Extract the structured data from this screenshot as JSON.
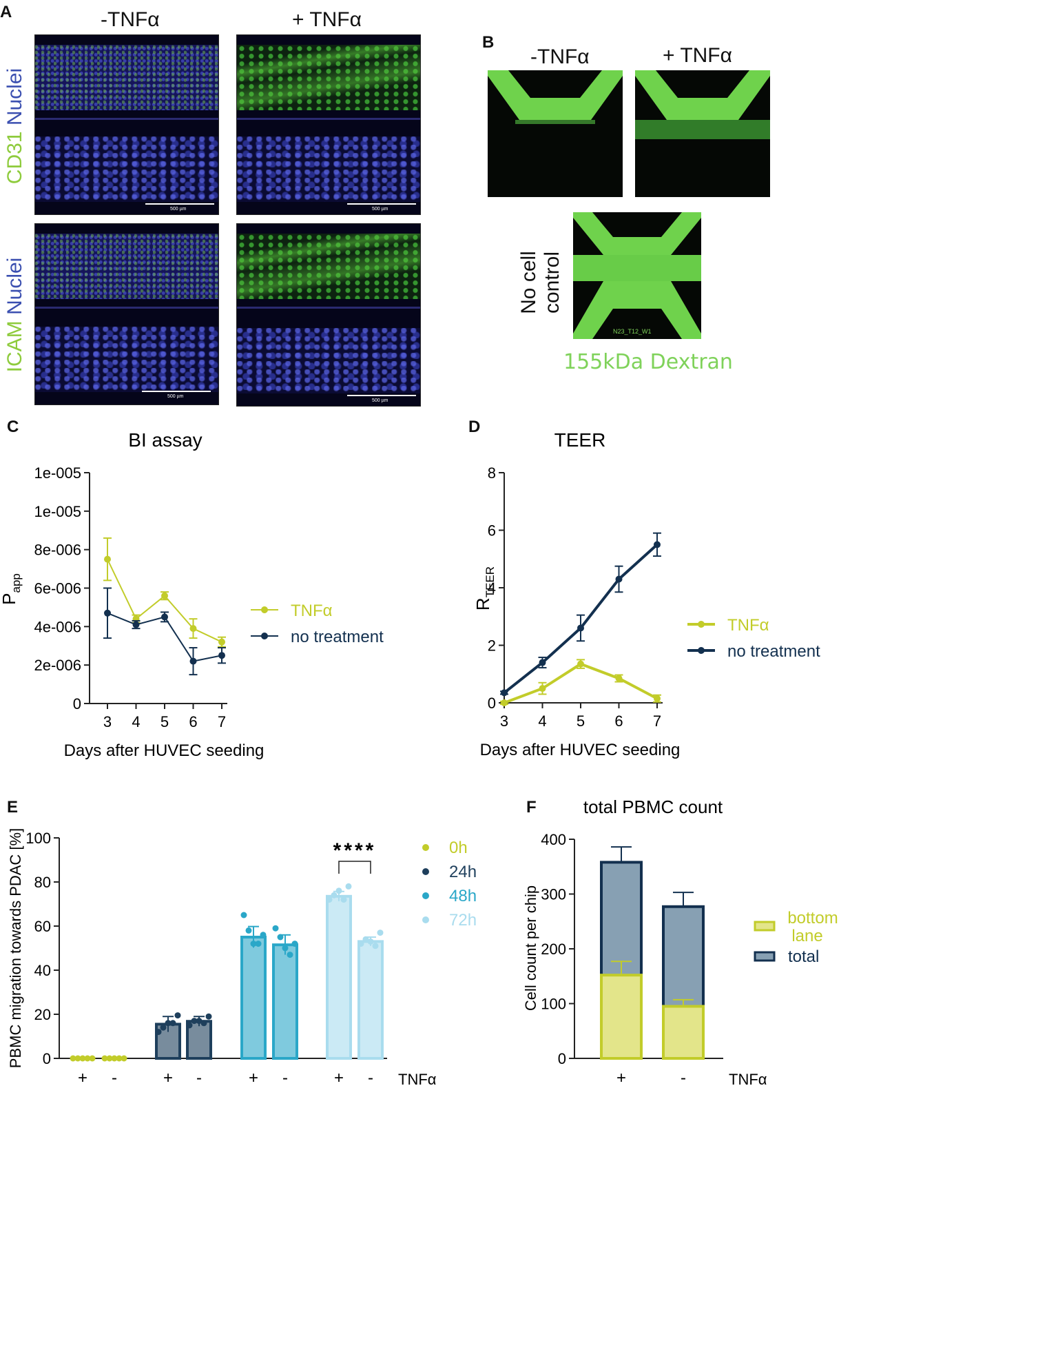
{
  "panels": {
    "A": {
      "letter": "A",
      "col_minus": "-TNFα",
      "col_plus": "+ TNFα",
      "row1_label_green": "CD31",
      "row1_label_blue": "Nuclei",
      "row2_label_green": "ICAM",
      "row2_label_blue": "Nuclei",
      "scalebar": "500 µm"
    },
    "B": {
      "letter": "B",
      "col_minus": "-TNFα",
      "col_plus": "+ TNFα",
      "control_line1": "No cell",
      "control_line2": "control",
      "image_tag": "N23_T12_W1",
      "caption": "155kDa Dextran"
    },
    "C": {
      "letter": "C"
    },
    "D": {
      "letter": "D"
    },
    "E": {
      "letter": "E"
    },
    "F": {
      "letter": "F"
    }
  },
  "colors": {
    "tnf": "#c2cc2a",
    "no_treatment": "#13304f",
    "h0": "#c2cc2a",
    "h24": "#1e3f5c",
    "h48": "#2aa7c8",
    "h72": "#a9dcee",
    "text_blue": "#3b4fb0",
    "text_green": "#8ecb3c",
    "dextran_green": "#7fd25a"
  },
  "chart_data": [
    {
      "id": "C",
      "type": "line",
      "title": "BI assay",
      "xlabel": "Days after HUVEC seeding",
      "ylabel_main": "P",
      "ylabel_sub": "app",
      "x": [
        3,
        4,
        5,
        6,
        7
      ],
      "ylim": [
        0,
        1.2e-05
      ],
      "y_ticks": [
        0,
        2e-06,
        4e-06,
        6e-06,
        8e-06,
        1e-05,
        1.2e-05
      ],
      "y_tick_labels": [
        "0",
        "2e-006",
        "4e-006",
        "6e-006",
        "8e-006",
        "1e-005",
        "1e-005"
      ],
      "legend_position": "right",
      "series": [
        {
          "name": "TNFα",
          "values": [
            7.5e-06,
            4.4e-06,
            5.6e-06,
            3.9e-06,
            3.2e-06
          ],
          "errors": [
            1.1e-06,
            2e-07,
            2e-07,
            5e-07,
            2.5e-07
          ]
        },
        {
          "name": "no treatment",
          "values": [
            4.7e-06,
            4.1e-06,
            4.5e-06,
            2.2e-06,
            2.5e-06
          ],
          "errors": [
            1.3e-06,
            2e-07,
            2.5e-07,
            7e-07,
            4e-07
          ]
        }
      ]
    },
    {
      "id": "D",
      "type": "line",
      "title": "TEER",
      "xlabel": "Days after HUVEC seeding",
      "ylabel_main": "R",
      "ylabel_sub": "TEER",
      "x": [
        3,
        4,
        5,
        6,
        7
      ],
      "ylim": [
        0,
        8
      ],
      "y_ticks": [
        0,
        2,
        4,
        6,
        8
      ],
      "legend_position": "right",
      "series": [
        {
          "name": "TNFα",
          "values": [
            0.0,
            0.5,
            1.35,
            0.85,
            0.15
          ],
          "errors": [
            0.05,
            0.2,
            0.15,
            0.12,
            0.12
          ]
        },
        {
          "name": "no treatment",
          "values": [
            0.35,
            1.4,
            2.6,
            4.3,
            5.5
          ],
          "errors": [
            0.05,
            0.18,
            0.45,
            0.45,
            0.4
          ]
        }
      ]
    },
    {
      "id": "E",
      "type": "bar",
      "ylabel": "PBMC migration towards PDAC [%]",
      "ylim": [
        0,
        100
      ],
      "y_ticks": [
        0,
        20,
        40,
        60,
        80,
        100
      ],
      "x_axis_label": "TNFα",
      "categories": [
        "+",
        "-",
        "+",
        "-",
        "+",
        "-",
        "+",
        "-"
      ],
      "groups": [
        "0h",
        "0h",
        "24h",
        "24h",
        "48h",
        "48h",
        "72h",
        "72h"
      ],
      "values": [
        0,
        0,
        15.5,
        16.8,
        55,
        51.5,
        73.5,
        53
      ],
      "errors": [
        0,
        0,
        3.5,
        2.2,
        4.8,
        4.5,
        2.2,
        2.0
      ],
      "points": [
        [
          0,
          0,
          0,
          0,
          0
        ],
        [
          0,
          0,
          0,
          0,
          0
        ],
        [
          12,
          14,
          16,
          16,
          19.5
        ],
        [
          15,
          17,
          17,
          16,
          19
        ],
        [
          65,
          58,
          52,
          52,
          56
        ],
        [
          59,
          55,
          50,
          47,
          52
        ],
        [
          72,
          74,
          76,
          72,
          78
        ],
        [
          52,
          54,
          53,
          51,
          57
        ]
      ],
      "legend": [
        "0h",
        "24h",
        "48h",
        "72h"
      ],
      "legend_position": "top-right",
      "significance": {
        "between": [
          6,
          7
        ],
        "label": "****"
      }
    },
    {
      "id": "F",
      "type": "bar",
      "title": "total PBMC count",
      "ylabel": "Cell count per chip",
      "ylim": [
        0,
        400
      ],
      "y_ticks": [
        0,
        100,
        200,
        300,
        400
      ],
      "x_axis_label": "TNFα",
      "categories": [
        "+",
        "-"
      ],
      "series": [
        {
          "name": "total",
          "values": [
            358,
            277
          ],
          "errors": [
            28,
            26
          ]
        },
        {
          "name": "bottom lane",
          "values": [
            152,
            95
          ],
          "errors": [
            25,
            12
          ]
        }
      ],
      "legend_position": "right",
      "legend_labels": [
        "bottom",
        "lane",
        "total"
      ]
    }
  ]
}
